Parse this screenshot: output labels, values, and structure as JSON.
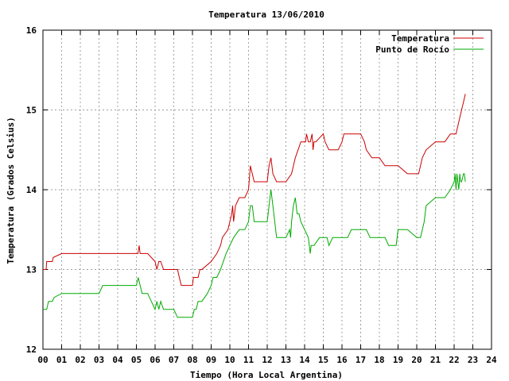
{
  "chart_data": {
    "type": "line",
    "title": "Temperatura 13/06/2010",
    "xlabel": "Tiempo (Hora Local Argentina)",
    "ylabel": "Temperatura (Grados Celsius)",
    "xlim": [
      0,
      24
    ],
    "ylim": [
      12,
      16
    ],
    "x_ticks": [
      "00",
      "01",
      "02",
      "03",
      "04",
      "05",
      "06",
      "07",
      "08",
      "09",
      "10",
      "11",
      "12",
      "13",
      "14",
      "15",
      "16",
      "17",
      "18",
      "19",
      "20",
      "21",
      "22",
      "23",
      "24"
    ],
    "y_ticks": [
      "12",
      "13",
      "14",
      "15",
      "16"
    ],
    "grid": true,
    "legend_position": "top-right",
    "series": [
      {
        "name": "Temperatura",
        "color": "#cc0000",
        "x": [
          0,
          0.17,
          0.2,
          0.5,
          0.55,
          1.0,
          2.0,
          3.0,
          4.0,
          5.0,
          5.08,
          5.15,
          5.2,
          5.3,
          5.6,
          6.0,
          6.1,
          6.2,
          6.3,
          6.45,
          6.5,
          7.0,
          7.2,
          7.3,
          7.4,
          7.5,
          8.0,
          8.05,
          8.3,
          8.4,
          8.5,
          9.0,
          9.3,
          9.5,
          9.6,
          9.9,
          10.0,
          10.1,
          10.15,
          10.2,
          10.25,
          10.3,
          10.5,
          10.8,
          11.0,
          11.1,
          11.2,
          11.3,
          11.5,
          11.8,
          12.0,
          12.1,
          12.2,
          12.3,
          12.5,
          12.7,
          13.0,
          13.3,
          13.5,
          13.8,
          14.0,
          14.05,
          14.1,
          14.2,
          14.3,
          14.4,
          14.45,
          14.5,
          14.6,
          14.8,
          15.0,
          15.1,
          15.3,
          15.5,
          15.8,
          16.0,
          16.1,
          16.3,
          16.6,
          17.0,
          17.2,
          17.3,
          17.6,
          17.9,
          18.0,
          18.3,
          18.8,
          19.0,
          19.5,
          20.0,
          20.1,
          20.3,
          20.5,
          21.0,
          21.2,
          21.5,
          21.8,
          22.0,
          22.1,
          22.2,
          22.4,
          22.5,
          22.6
        ],
        "y": [
          13.0,
          13.0,
          13.1,
          13.1,
          13.15,
          13.2,
          13.2,
          13.2,
          13.2,
          13.2,
          13.2,
          13.3,
          13.2,
          13.2,
          13.2,
          13.1,
          13.0,
          13.1,
          13.1,
          13.0,
          13.0,
          13.0,
          13.0,
          12.9,
          12.8,
          12.8,
          12.8,
          12.9,
          12.9,
          13.0,
          13.0,
          13.1,
          13.2,
          13.3,
          13.4,
          13.5,
          13.6,
          13.7,
          13.8,
          13.6,
          13.7,
          13.8,
          13.9,
          13.9,
          14.0,
          14.3,
          14.2,
          14.1,
          14.1,
          14.1,
          14.1,
          14.3,
          14.4,
          14.2,
          14.1,
          14.1,
          14.1,
          14.2,
          14.4,
          14.6,
          14.6,
          14.6,
          14.7,
          14.6,
          14.6,
          14.7,
          14.5,
          14.6,
          14.6,
          14.65,
          14.7,
          14.6,
          14.5,
          14.5,
          14.5,
          14.6,
          14.7,
          14.7,
          14.7,
          14.7,
          14.6,
          14.5,
          14.4,
          14.4,
          14.4,
          14.3,
          14.3,
          14.3,
          14.2,
          14.2,
          14.2,
          14.4,
          14.5,
          14.6,
          14.6,
          14.6,
          14.7,
          14.7,
          14.7,
          14.8,
          15.0,
          15.1,
          15.2
        ]
      },
      {
        "name": "Punto de Rocío",
        "color": "#00aa00",
        "x": [
          0,
          0.2,
          0.3,
          0.5,
          0.6,
          1.0,
          1.5,
          2.0,
          3.0,
          3.2,
          4.0,
          5.0,
          5.1,
          5.2,
          5.3,
          5.6,
          5.8,
          6.0,
          6.1,
          6.2,
          6.3,
          6.45,
          6.5,
          7.0,
          7.2,
          7.3,
          8.0,
          8.1,
          8.2,
          8.3,
          8.5,
          8.8,
          9.0,
          9.1,
          9.3,
          9.5,
          9.8,
          10.0,
          10.2,
          10.5,
          10.8,
          11.0,
          11.1,
          11.2,
          11.3,
          11.5,
          11.8,
          12.0,
          12.1,
          12.2,
          12.3,
          12.5,
          12.7,
          13.0,
          13.2,
          13.25,
          13.3,
          13.4,
          13.5,
          13.6,
          13.7,
          13.8,
          14.0,
          14.2,
          14.3,
          14.35,
          14.4,
          14.5,
          14.8,
          15.0,
          15.2,
          15.3,
          15.5,
          16.0,
          16.3,
          16.5,
          17.0,
          17.3,
          17.5,
          18.0,
          18.3,
          18.5,
          18.9,
          19.0,
          19.5,
          20.0,
          20.2,
          20.4,
          20.5,
          21.0,
          21.2,
          21.5,
          21.8,
          22.0,
          22.05,
          22.1,
          22.15,
          22.2,
          22.25,
          22.3,
          22.35,
          22.4,
          22.5,
          22.55,
          22.6
        ],
        "y": [
          12.5,
          12.5,
          12.6,
          12.6,
          12.65,
          12.7,
          12.7,
          12.7,
          12.7,
          12.8,
          12.8,
          12.8,
          12.9,
          12.8,
          12.7,
          12.7,
          12.6,
          12.5,
          12.6,
          12.5,
          12.6,
          12.5,
          12.5,
          12.5,
          12.4,
          12.4,
          12.4,
          12.5,
          12.5,
          12.6,
          12.6,
          12.7,
          12.8,
          12.9,
          12.9,
          13.0,
          13.2,
          13.3,
          13.4,
          13.5,
          13.5,
          13.6,
          13.8,
          13.8,
          13.6,
          13.6,
          13.6,
          13.6,
          13.8,
          14.0,
          13.8,
          13.4,
          13.4,
          13.4,
          13.5,
          13.4,
          13.6,
          13.8,
          13.9,
          13.7,
          13.7,
          13.6,
          13.5,
          13.4,
          13.2,
          13.3,
          13.3,
          13.3,
          13.4,
          13.4,
          13.4,
          13.3,
          13.4,
          13.4,
          13.4,
          13.5,
          13.5,
          13.5,
          13.4,
          13.4,
          13.4,
          13.3,
          13.3,
          13.5,
          13.5,
          13.4,
          13.4,
          13.6,
          13.8,
          13.9,
          13.9,
          13.9,
          14.0,
          14.1,
          14.2,
          14.0,
          14.2,
          14.1,
          14.0,
          14.2,
          14.1,
          14.1,
          14.2,
          14.2,
          14.1
        ]
      }
    ]
  }
}
